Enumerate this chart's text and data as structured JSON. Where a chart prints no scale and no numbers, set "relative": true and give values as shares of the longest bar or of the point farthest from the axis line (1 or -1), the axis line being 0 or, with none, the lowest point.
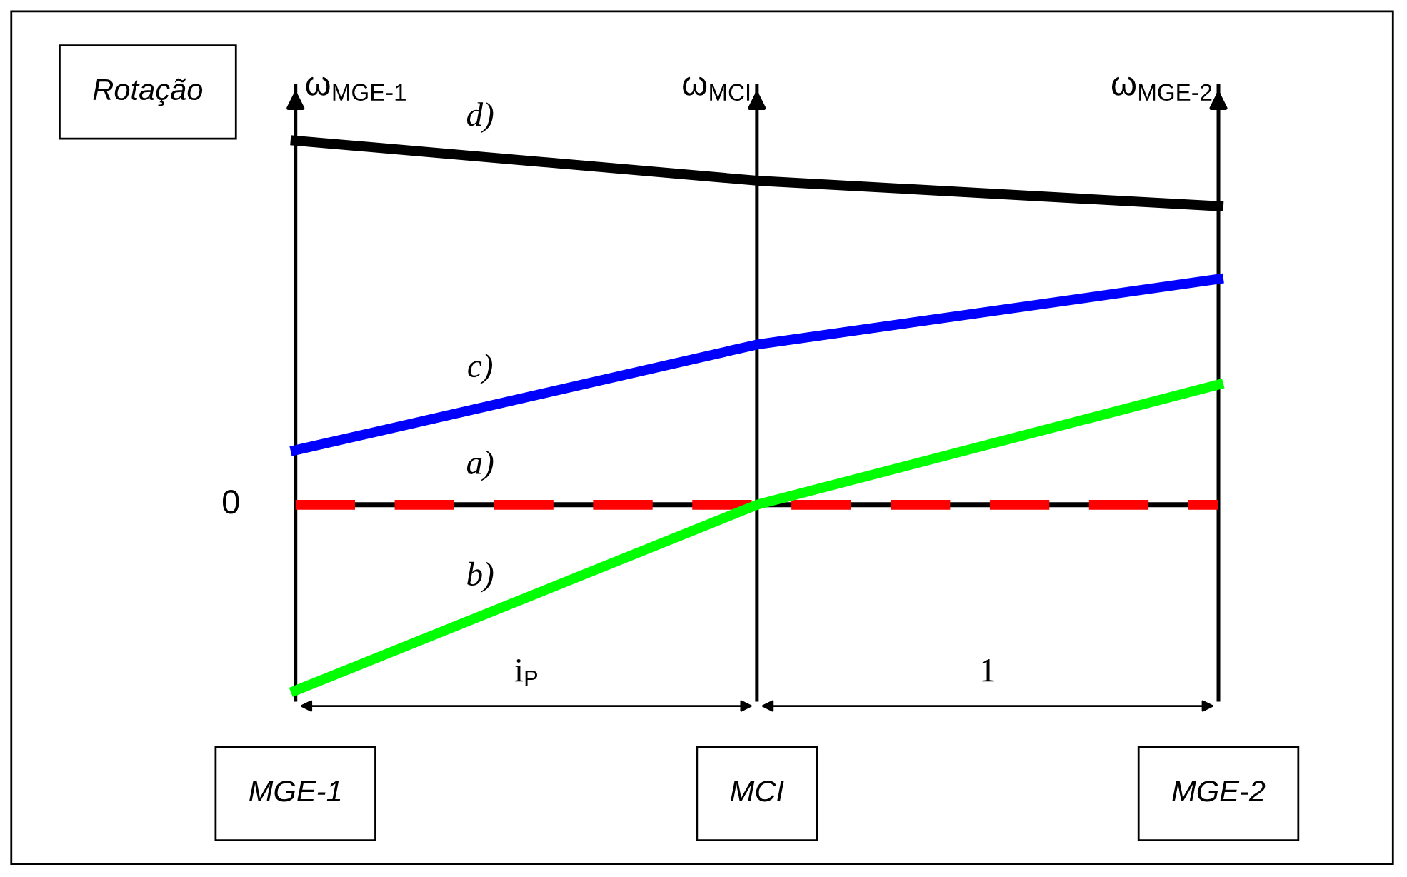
{
  "chart_data": {
    "type": "line",
    "relative": true,
    "ylabel": "Rotação",
    "categories": [
      "MGE-1",
      "MCI",
      "MGE-2"
    ],
    "series": [
      {
        "name": "d)",
        "color": "#000000",
        "values": [
          1,
          0.89,
          0.82
        ]
      },
      {
        "name": "c)",
        "color": "#0000ff",
        "values": [
          0.15,
          0.44,
          0.62
        ]
      },
      {
        "name": "a)",
        "color": "#ff0000",
        "values": [
          0,
          0,
          0
        ],
        "line_style": "dashed"
      },
      {
        "name": "b)",
        "color": "#00ff00",
        "values": [
          -0.51,
          0,
          0.33
        ]
      }
    ],
    "ref_lines": [
      {
        "axis": "y",
        "value": 0,
        "label": "0"
      },
      {
        "axis": "x",
        "value": "MGE-1",
        "label": "ω$_{MGE-1}$"
      },
      {
        "axis": "x",
        "value": "MCI",
        "label": "ω$_{MCI}$"
      },
      {
        "axis": "x",
        "value": "MGE-2",
        "label": "ω$_{MGE-2}$"
      }
    ],
    "annotations": [
      "i$_{P}$",
      "1"
    ],
    "marker": "none",
    "line_style": "solid"
  }
}
